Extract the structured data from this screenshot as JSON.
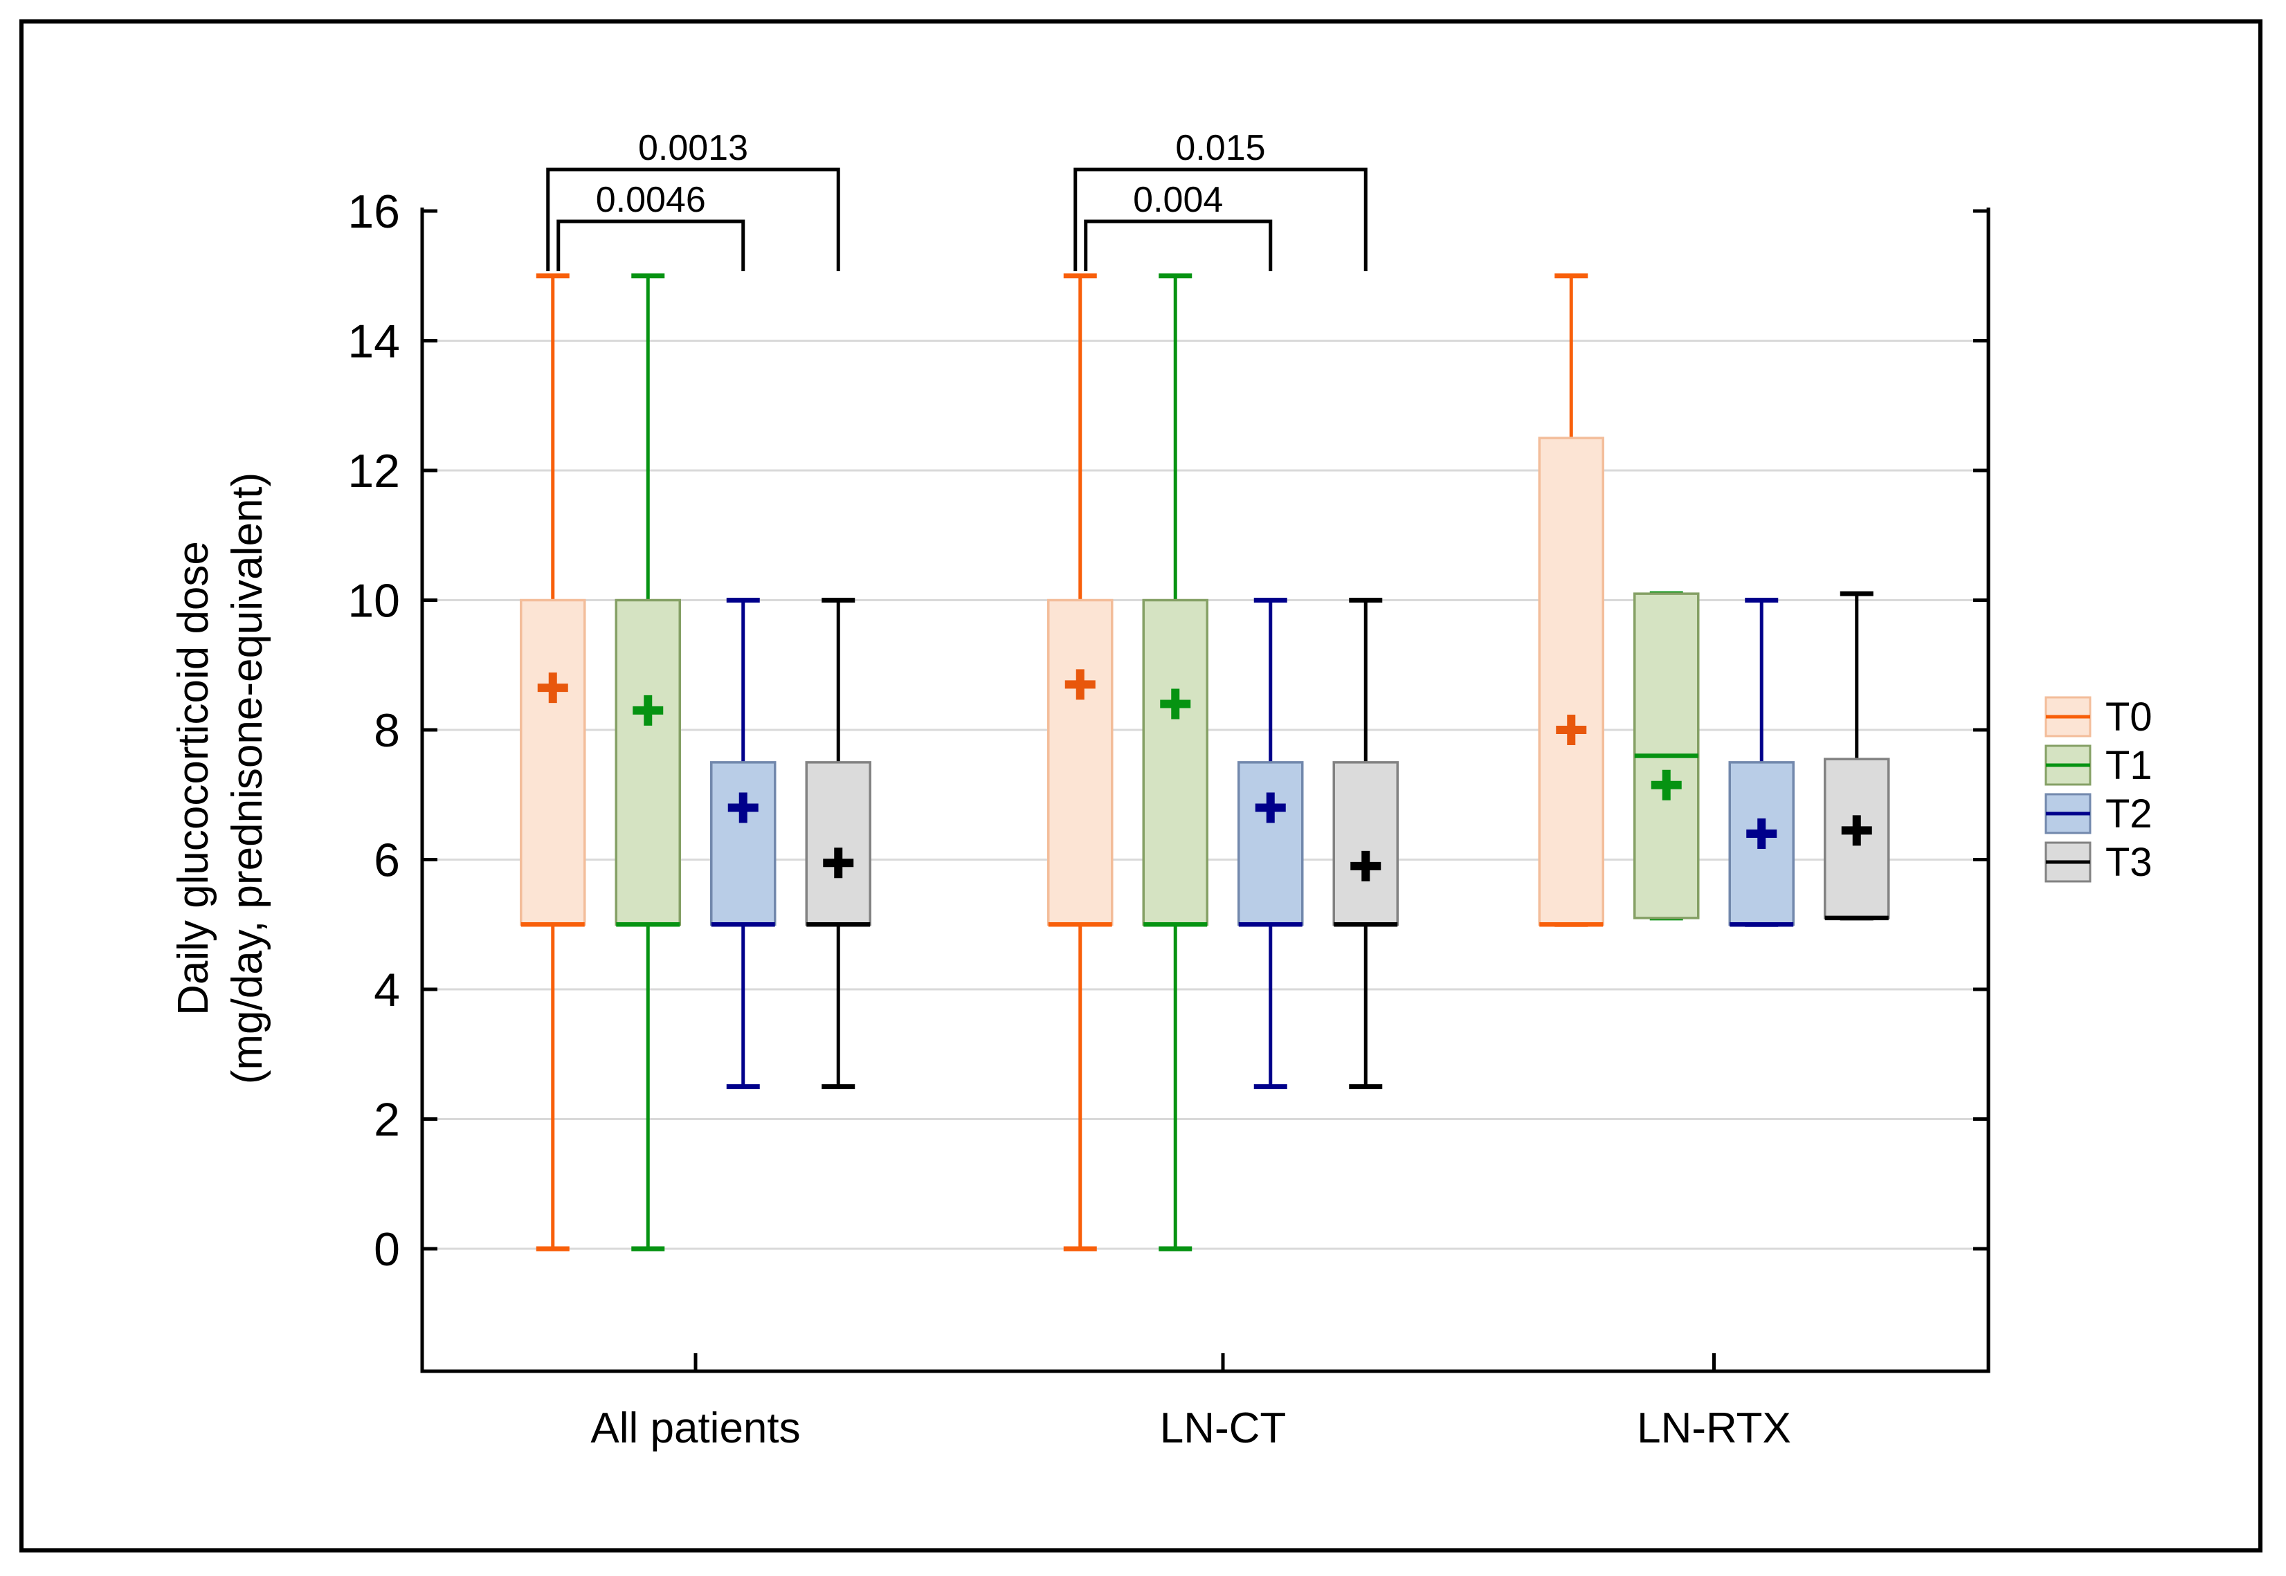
{
  "figure": {
    "background": "#ffffff",
    "border_color": "#000000"
  },
  "chart_data": {
    "type": "box",
    "title": "",
    "ylabel_lines": [
      "Daily glucocorticoid dose",
      "(mg/day, prednisone-equivalent)"
    ],
    "xlabel": "",
    "y_axis": {
      "min": 0,
      "max": 16,
      "tick_step": 2,
      "tick_labels": [
        "0",
        "2",
        "4",
        "6",
        "8",
        "10",
        "12",
        "14",
        "16"
      ],
      "gridlines_at": [
        0,
        2,
        4,
        6,
        8,
        10,
        12,
        14
      ],
      "gridline_color": "#d9d9d9"
    },
    "groups": [
      "All patients",
      "LN-CT",
      "LN-RTX"
    ],
    "series": [
      {
        "name": "T0",
        "fill": "#fce4d4",
        "edge": "#f3bd9a",
        "line": "#f85f0a",
        "mean_color": "#e8570c"
      },
      {
        "name": "T1",
        "fill": "#d5e3c2",
        "edge": "#85a065",
        "line": "#069312",
        "mean_color": "#069312"
      },
      {
        "name": "T2",
        "fill": "#b9cde7",
        "edge": "#7288ac",
        "line": "#00008b",
        "mean_color": "#00008b"
      },
      {
        "name": "T3",
        "fill": "#dbdbdb",
        "edge": "#828282",
        "line": "#000000",
        "mean_color": "#000000"
      }
    ],
    "data": [
      {
        "group": "All patients",
        "boxes": [
          {
            "series": "T0",
            "whisker_low": 0,
            "q1": 5,
            "median": 5,
            "q3": 10,
            "whisker_high": 15,
            "mean": 8.65
          },
          {
            "series": "T1",
            "whisker_low": 0,
            "q1": 5,
            "median": 5,
            "q3": 10,
            "whisker_high": 15,
            "mean": 8.3
          },
          {
            "series": "T2",
            "whisker_low": 2.5,
            "q1": 5,
            "median": 5,
            "q3": 7.5,
            "whisker_high": 10,
            "mean": 6.8
          },
          {
            "series": "T3",
            "whisker_low": 2.5,
            "q1": 5,
            "median": 5,
            "q3": 7.5,
            "whisker_high": 10,
            "mean": 5.95
          }
        ]
      },
      {
        "group": "LN-CT",
        "boxes": [
          {
            "series": "T0",
            "whisker_low": 0,
            "q1": 5,
            "median": 5,
            "q3": 10,
            "whisker_high": 15,
            "mean": 8.7
          },
          {
            "series": "T1",
            "whisker_low": 0,
            "q1": 5,
            "median": 5,
            "q3": 10,
            "whisker_high": 15,
            "mean": 8.4
          },
          {
            "series": "T2",
            "whisker_low": 2.5,
            "q1": 5,
            "median": 5,
            "q3": 7.5,
            "whisker_high": 10,
            "mean": 6.8
          },
          {
            "series": "T3",
            "whisker_low": 2.5,
            "q1": 5,
            "median": 5,
            "q3": 7.5,
            "whisker_high": 10,
            "mean": 5.9
          }
        ]
      },
      {
        "group": "LN-RTX",
        "boxes": [
          {
            "series": "T0",
            "whisker_low": 5,
            "q1": 5,
            "median": 5,
            "q3": 12.5,
            "whisker_high": 15,
            "mean": 8.0
          },
          {
            "series": "T1",
            "whisker_low": 5.1,
            "q1": 5.1,
            "median": 7.6,
            "q3": 10.1,
            "whisker_high": 10.1,
            "mean": 7.15
          },
          {
            "series": "T2",
            "whisker_low": 5,
            "q1": 5,
            "median": 5,
            "q3": 7.5,
            "whisker_high": 10,
            "mean": 6.4
          },
          {
            "series": "T3",
            "whisker_low": 5.1,
            "q1": 5.1,
            "median": 5.1,
            "q3": 7.55,
            "whisker_high": 10.1,
            "mean": 6.45
          }
        ]
      }
    ],
    "significance_brackets": [
      {
        "group": "All patients",
        "from": "T0",
        "to": "T3",
        "p": "0.0013",
        "level": "outer"
      },
      {
        "group": "All patients",
        "from": "T0",
        "to": "T2",
        "p": "0.0046",
        "level": "inner"
      },
      {
        "group": "LN-CT",
        "from": "T0",
        "to": "T3",
        "p": "0.015",
        "level": "outer"
      },
      {
        "group": "LN-CT",
        "from": "T0",
        "to": "T2",
        "p": "0.004",
        "level": "inner"
      }
    ],
    "legend": {
      "position": "right",
      "entries": [
        "T0",
        "T1",
        "T2",
        "T3"
      ]
    },
    "markers": {
      "mean_symbol": "plus-cross",
      "median_style": "thick colored line at median"
    }
  }
}
